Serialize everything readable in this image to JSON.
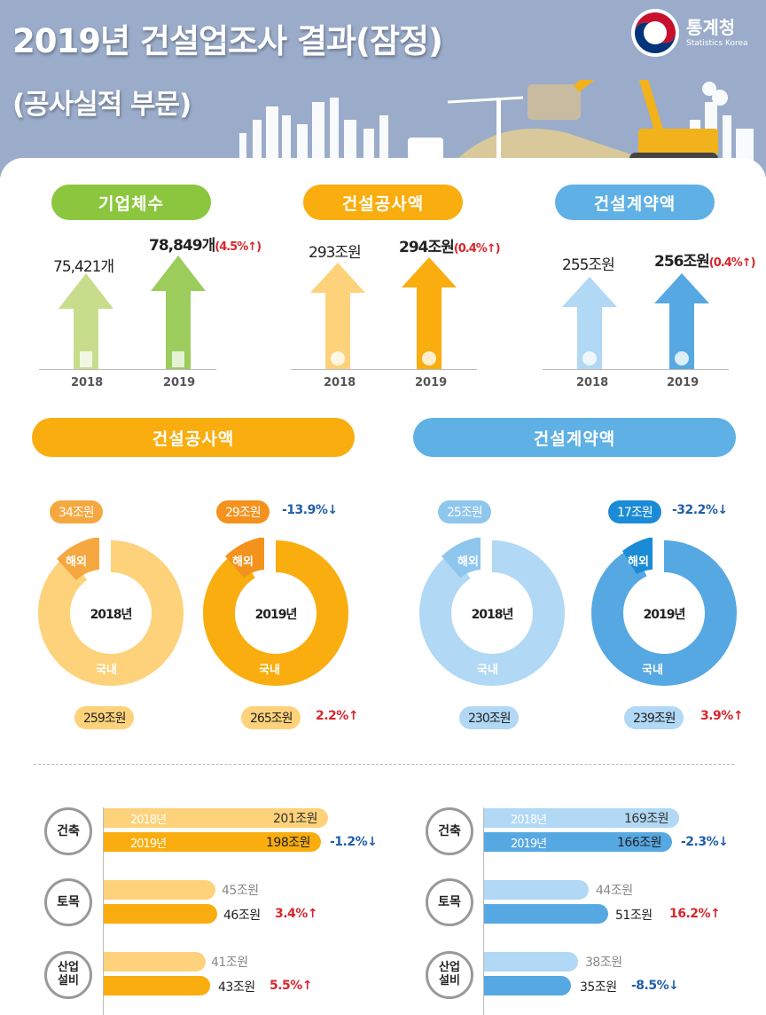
{
  "header": {
    "title_line1": "2019년 건설업조사 결과(잠정)",
    "title_line2": "(공사실적 부문)",
    "logo_ko": "통계청",
    "logo_en": "Statistics Korea"
  },
  "colors": {
    "header_bg": "#9aacca",
    "green_light": "#c8dd8c",
    "green": "#9ccc5c",
    "green_pill": "#8cc63f",
    "orange_light": "#fdd27a",
    "orange": "#f9ad0f",
    "orange_dark": "#f3921c",
    "blue_light": "#b1d8f5",
    "blue": "#56a8e2",
    "blue_dark": "#1b8bd6",
    "up_red": "#d7262c",
    "down_blue": "#1f5ea8"
  },
  "summary": [
    {
      "title": "기업체수",
      "y2018": "75,421개",
      "y2019": "78,849개",
      "change": "(4.5%↑)",
      "year_a": "2018",
      "year_b": "2019"
    },
    {
      "title": "건설공사액",
      "y2018": "293조원",
      "y2019": "294조원",
      "change": "(0.4%↑)",
      "year_a": "2018",
      "year_b": "2019"
    },
    {
      "title": "건설계약액",
      "y2018": "255조원",
      "y2019": "256조원",
      "change": "(0.4%↑)",
      "year_a": "2018",
      "year_b": "2019"
    }
  ],
  "donuts": {
    "construction": {
      "title": "건설공사액",
      "d2018": {
        "year": "2018년",
        "overseas": "34조원",
        "domestic": "259조원",
        "overseas_label": "해외",
        "domestic_label": "국내"
      },
      "d2019": {
        "year": "2019년",
        "overseas": "29조원",
        "domestic": "265조원",
        "overseas_label": "해외",
        "domestic_label": "국내",
        "overseas_change": "-13.9%↓",
        "domestic_change": "2.2%↑"
      }
    },
    "contract": {
      "title": "건설계약액",
      "d2018": {
        "year": "2018년",
        "overseas": "25조원",
        "domestic": "230조원",
        "overseas_label": "해외",
        "domestic_label": "국내"
      },
      "d2019": {
        "year": "2019년",
        "overseas": "17조원",
        "domestic": "239조원",
        "overseas_label": "해외",
        "domestic_label": "국내",
        "overseas_change": "-32.2%↓",
        "domestic_change": "3.9%↑"
      }
    }
  },
  "bars": {
    "construction": [
      {
        "category": "건축",
        "y2018_label": "2018년",
        "y2019_label": "2019년",
        "y2018": "201조원",
        "y2019": "198조원",
        "change": "-1.2%↓"
      },
      {
        "category": "토목",
        "y2018": "45조원",
        "y2019": "46조원",
        "change": "3.4%↑"
      },
      {
        "category": "산업설비",
        "y2018": "41조원",
        "y2019": "43조원",
        "change": "5.5%↑"
      }
    ],
    "contract": [
      {
        "category": "건축",
        "y2018_label": "2018년",
        "y2019_label": "2019년",
        "y2018": "169조원",
        "y2019": "166조원",
        "change": "-2.3%↓"
      },
      {
        "category": "토목",
        "y2018": "44조원",
        "y2019": "51조원",
        "change": "16.2%↑"
      },
      {
        "category": "산업설비",
        "y2018": "38조원",
        "y2019": "35조원",
        "change": "-8.5%↓"
      }
    ]
  },
  "chart_data": [
    {
      "type": "bar",
      "title": "기업체수",
      "categories": [
        "2018",
        "2019"
      ],
      "values": [
        75421,
        78849
      ],
      "unit": "개",
      "change_pct": 4.5
    },
    {
      "type": "bar",
      "title": "건설공사액",
      "categories": [
        "2018",
        "2019"
      ],
      "values": [
        293,
        294
      ],
      "unit": "조원",
      "change_pct": 0.4
    },
    {
      "type": "bar",
      "title": "건설계약액",
      "categories": [
        "2018",
        "2019"
      ],
      "values": [
        255,
        256
      ],
      "unit": "조원",
      "change_pct": 0.4
    },
    {
      "type": "pie",
      "title": "건설공사액 2018년",
      "categories": [
        "해외",
        "국내"
      ],
      "values": [
        34,
        259
      ],
      "unit": "조원"
    },
    {
      "type": "pie",
      "title": "건설공사액 2019년",
      "categories": [
        "해외",
        "국내"
      ],
      "values": [
        29,
        265
      ],
      "unit": "조원",
      "change_pct": [
        -13.9,
        2.2
      ]
    },
    {
      "type": "pie",
      "title": "건설계약액 2018년",
      "categories": [
        "해외",
        "국내"
      ],
      "values": [
        25,
        230
      ],
      "unit": "조원"
    },
    {
      "type": "pie",
      "title": "건설계약액 2019년",
      "categories": [
        "해외",
        "국내"
      ],
      "values": [
        17,
        239
      ],
      "unit": "조원",
      "change_pct": [
        -32.2,
        3.9
      ]
    },
    {
      "type": "bar",
      "title": "건설공사액 공종별",
      "categories": [
        "건축",
        "토목",
        "산업설비"
      ],
      "series": [
        {
          "name": "2018년",
          "values": [
            201,
            45,
            41
          ]
        },
        {
          "name": "2019년",
          "values": [
            198,
            46,
            43
          ]
        }
      ],
      "change_pct": [
        -1.2,
        3.4,
        5.5
      ],
      "unit": "조원"
    },
    {
      "type": "bar",
      "title": "건설계약액 공종별",
      "categories": [
        "건축",
        "토목",
        "산업설비"
      ],
      "series": [
        {
          "name": "2018년",
          "values": [
            169,
            44,
            38
          ]
        },
        {
          "name": "2019년",
          "values": [
            166,
            51,
            35
          ]
        }
      ],
      "change_pct": [
        -2.3,
        16.2,
        -8.5
      ],
      "unit": "조원"
    }
  ]
}
